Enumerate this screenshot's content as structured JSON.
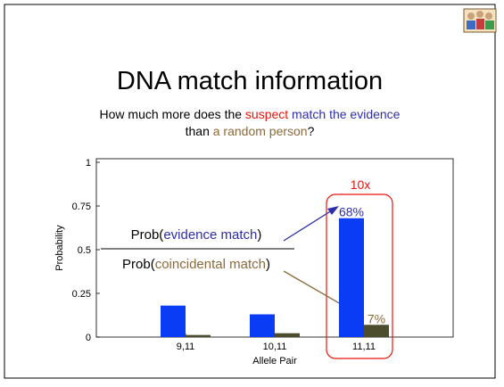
{
  "title": "DNA match information",
  "subtitle": {
    "line1": [
      "How much more does the ",
      "suspect",
      " match the evidence"
    ],
    "line2": [
      "than ",
      "a random person",
      "?"
    ]
  },
  "chart_data": {
    "type": "bar",
    "categories": [
      "9,11",
      "10,11",
      "11,11"
    ],
    "series": [
      {
        "color": "#0a3cf5",
        "values": [
          0.18,
          0.13,
          0.68
        ],
        "value_labels": [
          null,
          null,
          "68%"
        ]
      },
      {
        "color": "#4b4d2d",
        "values": [
          0.012,
          0.022,
          0.07
        ],
        "value_labels": [
          null,
          null,
          "7%"
        ]
      }
    ],
    "xlabel": "Allele Pair",
    "ylabel": "Probability",
    "ylim": [
      0,
      1
    ],
    "yticks": [
      0,
      0.25,
      0.5,
      0.75,
      1
    ],
    "annotations": {
      "ratio": "10x",
      "fraction": {
        "numerator": [
          "Prob(",
          "evidence match",
          ")"
        ],
        "denominator": [
          "Prob(",
          "coincidental match",
          ")"
        ]
      }
    }
  }
}
